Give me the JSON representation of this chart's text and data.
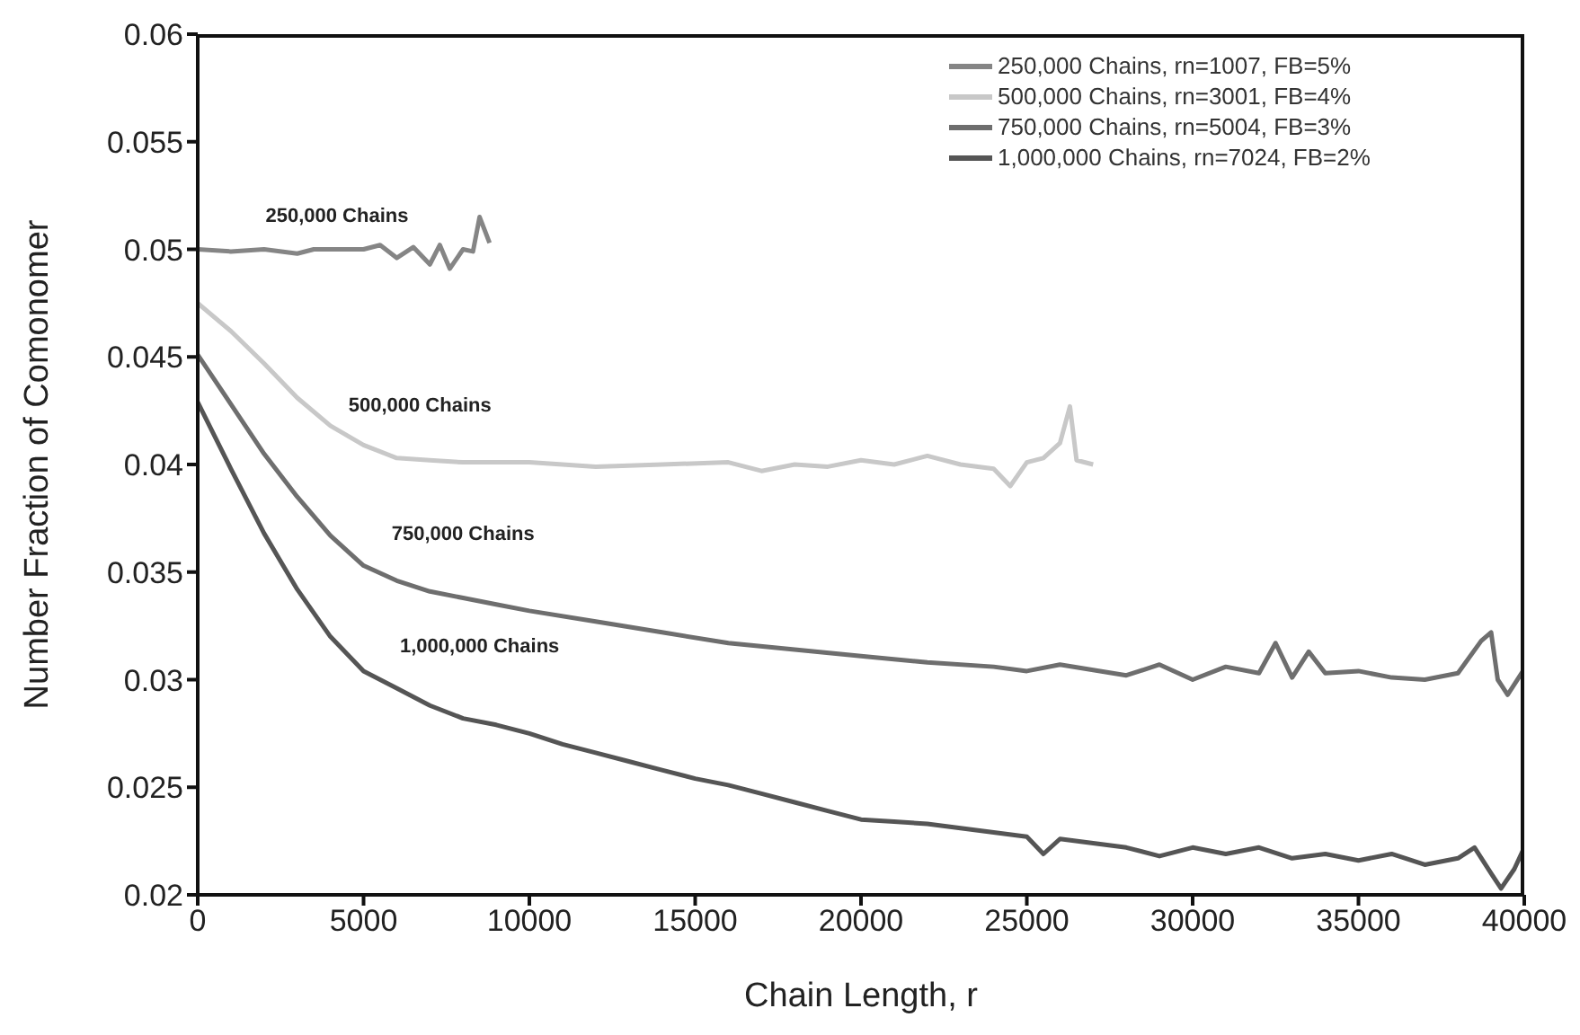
{
  "chart_data": {
    "type": "line",
    "xlabel": "Chain Length, r",
    "ylabel": "Number Fraction of Comonomer",
    "xlim": [
      0,
      40000
    ],
    "xticks": [
      0,
      5000,
      10000,
      15000,
      20000,
      25000,
      30000,
      35000,
      40000
    ],
    "ylim": [
      0.02,
      0.06
    ],
    "yticks": [
      0.02,
      0.025,
      0.03,
      0.035,
      0.04,
      0.045,
      0.05,
      0.055,
      0.06
    ],
    "grid": false,
    "legend": "top right",
    "marker": "none",
    "line_style": "solid",
    "series": [
      {
        "name": "250,000 Chains, rn=1007, FB=5%",
        "color": "#858585",
        "x": [
          0,
          1000,
          2000,
          3000,
          3500,
          4000,
          5000,
          5500,
          6000,
          6500,
          7000,
          7300,
          7600,
          8000,
          8300,
          8500,
          8800
        ],
        "values": [
          0.05,
          0.0499,
          0.05,
          0.0498,
          0.05,
          0.05,
          0.05,
          0.0502,
          0.0496,
          0.0501,
          0.0493,
          0.0502,
          0.0491,
          0.05,
          0.0499,
          0.0515,
          0.0503
        ]
      },
      {
        "name": "500,000 Chains, rn=3001, FB=4%",
        "color": "#c8c8c8",
        "x": [
          0,
          1000,
          2000,
          3000,
          4000,
          5000,
          6000,
          7000,
          8000,
          10000,
          12000,
          14000,
          16000,
          17000,
          18000,
          19000,
          20000,
          21000,
          22000,
          23000,
          24000,
          24500,
          25000,
          25500,
          26000,
          26300,
          26500,
          27000
        ],
        "values": [
          0.0475,
          0.0462,
          0.0447,
          0.0431,
          0.0418,
          0.0409,
          0.0403,
          0.0402,
          0.0401,
          0.0401,
          0.0399,
          0.04,
          0.0401,
          0.0397,
          0.04,
          0.0399,
          0.0402,
          0.04,
          0.0404,
          0.04,
          0.0398,
          0.039,
          0.0401,
          0.0403,
          0.041,
          0.0427,
          0.0402,
          0.04
        ]
      },
      {
        "name": "750,000 Chains, rn=5004, FB=3%",
        "color": "#6e6e6e",
        "x": [
          0,
          1000,
          2000,
          3000,
          4000,
          5000,
          6000,
          7000,
          8000,
          9000,
          10000,
          12000,
          14000,
          16000,
          18000,
          20000,
          22000,
          24000,
          25000,
          26000,
          28000,
          29000,
          30000,
          31000,
          32000,
          32500,
          33000,
          33500,
          34000,
          35000,
          36000,
          37000,
          38000,
          38700,
          39000,
          39200,
          39500,
          40000
        ],
        "values": [
          0.0451,
          0.0428,
          0.0405,
          0.0385,
          0.0367,
          0.0353,
          0.0346,
          0.0341,
          0.0338,
          0.0335,
          0.0332,
          0.0327,
          0.0322,
          0.0317,
          0.0314,
          0.0311,
          0.0308,
          0.0306,
          0.0304,
          0.0307,
          0.0302,
          0.0307,
          0.03,
          0.0306,
          0.0303,
          0.0317,
          0.0301,
          0.0313,
          0.0303,
          0.0304,
          0.0301,
          0.03,
          0.0303,
          0.0318,
          0.0322,
          0.03,
          0.0293,
          0.0305
        ]
      },
      {
        "name": "1,000,000 Chains, rn=7024, FB=2%",
        "color": "#555555",
        "x": [
          0,
          1000,
          2000,
          3000,
          4000,
          5000,
          6000,
          7000,
          8000,
          9000,
          10000,
          11000,
          12000,
          13000,
          14000,
          15000,
          16000,
          17000,
          18000,
          19000,
          20000,
          21000,
          22000,
          23000,
          24000,
          25000,
          25500,
          26000,
          27000,
          28000,
          29000,
          30000,
          31000,
          32000,
          33000,
          34000,
          35000,
          36000,
          37000,
          38000,
          38500,
          39000,
          39300,
          39700,
          40000
        ],
        "values": [
          0.0429,
          0.0398,
          0.0368,
          0.0342,
          0.032,
          0.0304,
          0.0296,
          0.0288,
          0.0282,
          0.0279,
          0.0275,
          0.027,
          0.0266,
          0.0262,
          0.0258,
          0.0254,
          0.0251,
          0.0247,
          0.0243,
          0.0239,
          0.0235,
          0.0234,
          0.0233,
          0.0231,
          0.0229,
          0.0227,
          0.0219,
          0.0226,
          0.0224,
          0.0222,
          0.0218,
          0.0222,
          0.0219,
          0.0222,
          0.0217,
          0.0219,
          0.0216,
          0.0219,
          0.0214,
          0.0217,
          0.0222,
          0.021,
          0.0203,
          0.0212,
          0.0222
        ]
      }
    ],
    "annotations": [
      "250,000 Chains",
      "500,000 Chains",
      "750,000 Chains",
      "1,000,000 Chains"
    ]
  }
}
